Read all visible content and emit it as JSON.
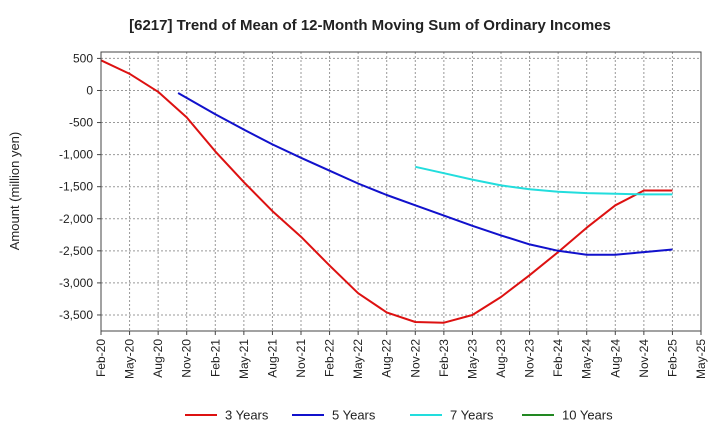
{
  "chart_data": {
    "type": "line",
    "title": "[6217]  Trend of Mean of 12-Month Moving Sum of Ordinary Incomes",
    "ylabel": "Amount (million yen)",
    "xlabel": "",
    "ylim": [
      -3750,
      600
    ],
    "yticks": [
      500,
      0,
      -500,
      -1000,
      -1500,
      -2000,
      -2500,
      -3000,
      -3500
    ],
    "ytick_labels": [
      "500",
      "0",
      "-500",
      "-1,000",
      "-1,500",
      "-2,000",
      "-2,500",
      "-3,000",
      "-3,500"
    ],
    "x_tick_labels": [
      "Feb-20",
      "May-20",
      "Aug-20",
      "Nov-20",
      "Feb-21",
      "May-21",
      "Aug-21",
      "Nov-21",
      "Feb-22",
      "May-22",
      "Aug-22",
      "Nov-22",
      "Feb-23",
      "May-23",
      "Aug-23",
      "Nov-23",
      "Feb-24",
      "May-24",
      "Aug-24",
      "Nov-24",
      "Feb-25",
      "May-25"
    ],
    "grid": true,
    "legend_position": "bottom",
    "series": [
      {
        "name": "3 Years",
        "color": "#dd1111",
        "x": [
          0,
          1,
          2,
          3,
          4,
          5,
          6,
          7,
          8,
          9,
          10,
          11,
          12,
          13,
          14,
          15,
          16,
          17,
          18,
          19,
          20
        ],
        "values": [
          470,
          260,
          -20,
          -420,
          -950,
          -1430,
          -1880,
          -2280,
          -2730,
          -3160,
          -3460,
          -3610,
          -3620,
          -3500,
          -3220,
          -2880,
          -2520,
          -2140,
          -1790,
          -1560,
          -1560
        ]
      },
      {
        "name": "5 Years",
        "color": "#1111cc",
        "x": [
          2.7,
          4,
          5,
          6,
          7,
          8,
          9,
          10,
          11,
          12,
          13,
          14,
          15,
          16,
          17,
          18,
          19,
          20
        ],
        "values": [
          -40,
          -370,
          -610,
          -840,
          -1050,
          -1250,
          -1450,
          -1630,
          -1790,
          -1950,
          -2110,
          -2260,
          -2400,
          -2500,
          -2560,
          -2560,
          -2520,
          -2480
        ]
      },
      {
        "name": "7 Years",
        "color": "#22dddd",
        "x": [
          11,
          12,
          13,
          14,
          15,
          16,
          17,
          18,
          19,
          20
        ],
        "values": [
          -1190,
          -1290,
          -1390,
          -1480,
          -1540,
          -1580,
          -1600,
          -1610,
          -1620,
          -1620
        ]
      },
      {
        "name": "10 Years",
        "color": "#228822",
        "x": [],
        "values": []
      }
    ]
  }
}
